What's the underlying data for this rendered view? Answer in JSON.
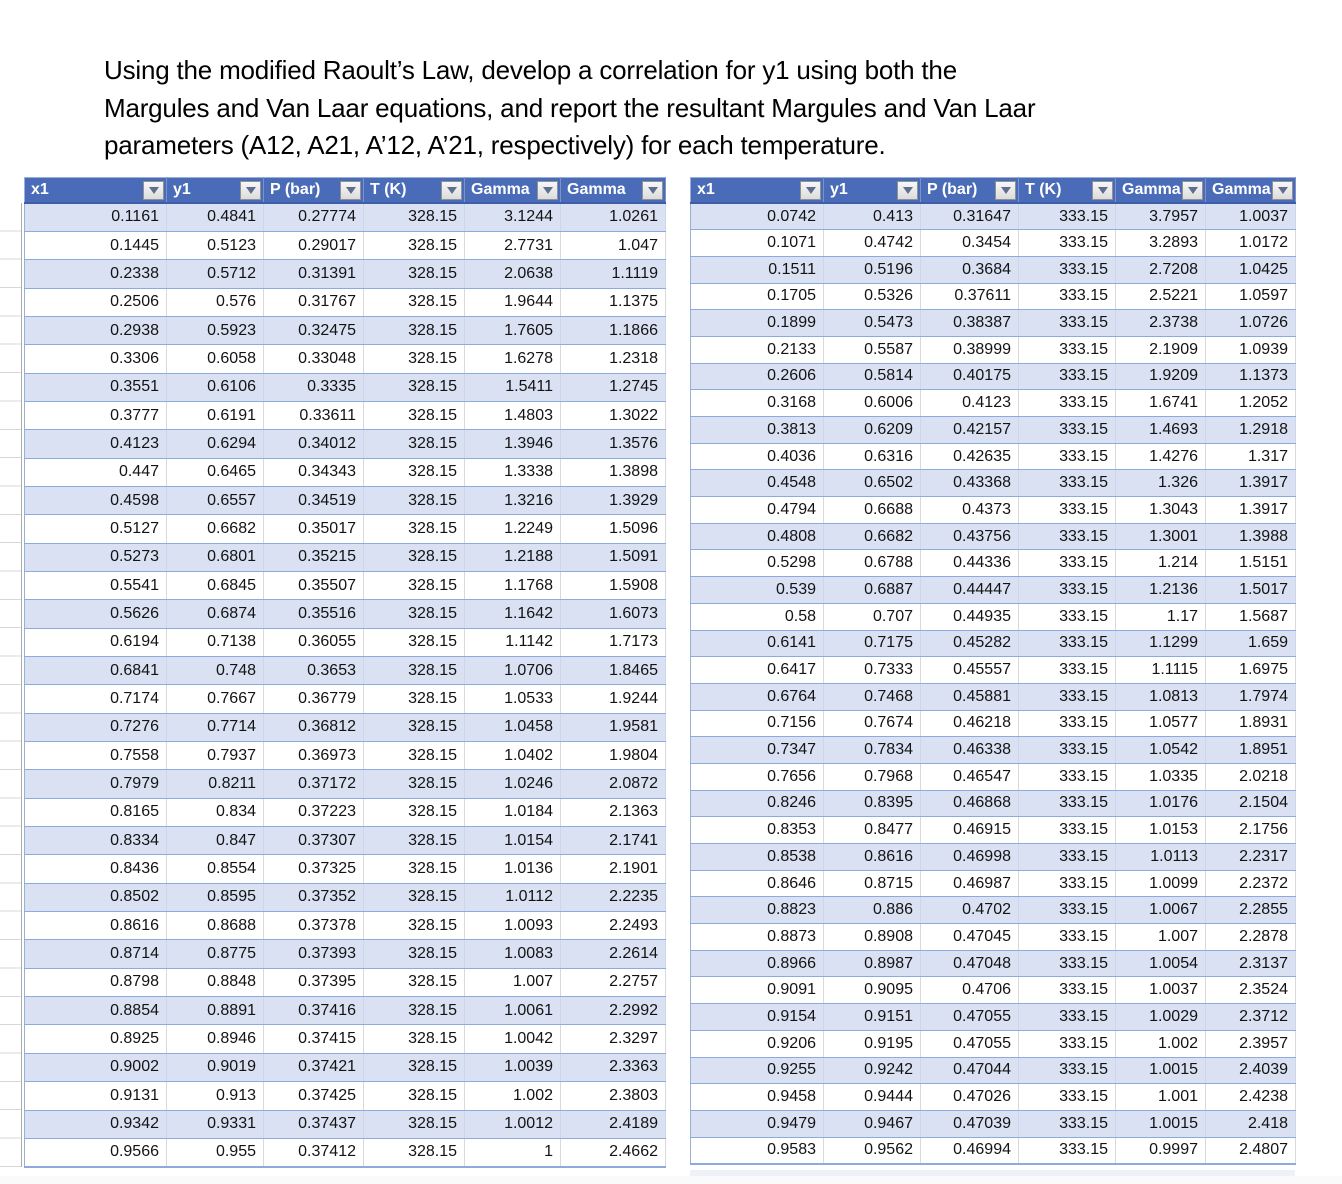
{
  "title": {
    "line1": "Using the modified Raoult’s Law, develop a correlation for y1 using both the",
    "line2": "Margules and Van Laar equations, and report the resultant Margules and Van Laar",
    "line3": "parameters (A12, A21, A’12, A’21, respectively) for each temperature."
  },
  "colors": {
    "header_bg": "#4A6CB8",
    "band": "#D9E1F2",
    "row_border": "#8EA9DB",
    "header_underline": "#3D5EA6"
  },
  "tables": [
    {
      "id": "table-328K",
      "temperature": "328.15",
      "columns": [
        "x1",
        "y1",
        "P (bar)",
        "T (K)",
        "Gamma",
        "Gamma"
      ],
      "rows": [
        [
          "0.1161",
          "0.4841",
          "0.27774",
          "328.15",
          "3.1244",
          "1.0261"
        ],
        [
          "0.1445",
          "0.5123",
          "0.29017",
          "328.15",
          "2.7731",
          "1.047"
        ],
        [
          "0.2338",
          "0.5712",
          "0.31391",
          "328.15",
          "2.0638",
          "1.1119"
        ],
        [
          "0.2506",
          "0.576",
          "0.31767",
          "328.15",
          "1.9644",
          "1.1375"
        ],
        [
          "0.2938",
          "0.5923",
          "0.32475",
          "328.15",
          "1.7605",
          "1.1866"
        ],
        [
          "0.3306",
          "0.6058",
          "0.33048",
          "328.15",
          "1.6278",
          "1.2318"
        ],
        [
          "0.3551",
          "0.6106",
          "0.3335",
          "328.15",
          "1.5411",
          "1.2745"
        ],
        [
          "0.3777",
          "0.6191",
          "0.33611",
          "328.15",
          "1.4803",
          "1.3022"
        ],
        [
          "0.4123",
          "0.6294",
          "0.34012",
          "328.15",
          "1.3946",
          "1.3576"
        ],
        [
          "0.447",
          "0.6465",
          "0.34343",
          "328.15",
          "1.3338",
          "1.3898"
        ],
        [
          "0.4598",
          "0.6557",
          "0.34519",
          "328.15",
          "1.3216",
          "1.3929"
        ],
        [
          "0.5127",
          "0.6682",
          "0.35017",
          "328.15",
          "1.2249",
          "1.5096"
        ],
        [
          "0.5273",
          "0.6801",
          "0.35215",
          "328.15",
          "1.2188",
          "1.5091"
        ],
        [
          "0.5541",
          "0.6845",
          "0.35507",
          "328.15",
          "1.1768",
          "1.5908"
        ],
        [
          "0.5626",
          "0.6874",
          "0.35516",
          "328.15",
          "1.1642",
          "1.6073"
        ],
        [
          "0.6194",
          "0.7138",
          "0.36055",
          "328.15",
          "1.1142",
          "1.7173"
        ],
        [
          "0.6841",
          "0.748",
          "0.3653",
          "328.15",
          "1.0706",
          "1.8465"
        ],
        [
          "0.7174",
          "0.7667",
          "0.36779",
          "328.15",
          "1.0533",
          "1.9244"
        ],
        [
          "0.7276",
          "0.7714",
          "0.36812",
          "328.15",
          "1.0458",
          "1.9581"
        ],
        [
          "0.7558",
          "0.7937",
          "0.36973",
          "328.15",
          "1.0402",
          "1.9804"
        ],
        [
          "0.7979",
          "0.8211",
          "0.37172",
          "328.15",
          "1.0246",
          "2.0872"
        ],
        [
          "0.8165",
          "0.834",
          "0.37223",
          "328.15",
          "1.0184",
          "2.1363"
        ],
        [
          "0.8334",
          "0.847",
          "0.37307",
          "328.15",
          "1.0154",
          "2.1741"
        ],
        [
          "0.8436",
          "0.8554",
          "0.37325",
          "328.15",
          "1.0136",
          "2.1901"
        ],
        [
          "0.8502",
          "0.8595",
          "0.37352",
          "328.15",
          "1.0112",
          "2.2235"
        ],
        [
          "0.8616",
          "0.8688",
          "0.37378",
          "328.15",
          "1.0093",
          "2.2493"
        ],
        [
          "0.8714",
          "0.8775",
          "0.37393",
          "328.15",
          "1.0083",
          "2.2614"
        ],
        [
          "0.8798",
          "0.8848",
          "0.37395",
          "328.15",
          "1.007",
          "2.2757"
        ],
        [
          "0.8854",
          "0.8891",
          "0.37416",
          "328.15",
          "1.0061",
          "2.2992"
        ],
        [
          "0.8925",
          "0.8946",
          "0.37415",
          "328.15",
          "1.0042",
          "2.3297"
        ],
        [
          "0.9002",
          "0.9019",
          "0.37421",
          "328.15",
          "1.0039",
          "2.3363"
        ],
        [
          "0.9131",
          "0.913",
          "0.37425",
          "328.15",
          "1.002",
          "2.3803"
        ],
        [
          "0.9342",
          "0.9331",
          "0.37437",
          "328.15",
          "1.0012",
          "2.4189"
        ],
        [
          "0.9566",
          "0.955",
          "0.37412",
          "328.15",
          "1",
          "2.4662"
        ]
      ]
    },
    {
      "id": "table-333K",
      "temperature": "333.15",
      "columns": [
        "x1",
        "y1",
        "P (bar)",
        "T (K)",
        "Gamma",
        "Gamma"
      ],
      "rows": [
        [
          "0.0742",
          "0.413",
          "0.31647",
          "333.15",
          "3.7957",
          "1.0037"
        ],
        [
          "0.1071",
          "0.4742",
          "0.3454",
          "333.15",
          "3.2893",
          "1.0172"
        ],
        [
          "0.1511",
          "0.5196",
          "0.3684",
          "333.15",
          "2.7208",
          "1.0425"
        ],
        [
          "0.1705",
          "0.5326",
          "0.37611",
          "333.15",
          "2.5221",
          "1.0597"
        ],
        [
          "0.1899",
          "0.5473",
          "0.38387",
          "333.15",
          "2.3738",
          "1.0726"
        ],
        [
          "0.2133",
          "0.5587",
          "0.38999",
          "333.15",
          "2.1909",
          "1.0939"
        ],
        [
          "0.2606",
          "0.5814",
          "0.40175",
          "333.15",
          "1.9209",
          "1.1373"
        ],
        [
          "0.3168",
          "0.6006",
          "0.4123",
          "333.15",
          "1.6741",
          "1.2052"
        ],
        [
          "0.3813",
          "0.6209",
          "0.42157",
          "333.15",
          "1.4693",
          "1.2918"
        ],
        [
          "0.4036",
          "0.6316",
          "0.42635",
          "333.15",
          "1.4276",
          "1.317"
        ],
        [
          "0.4548",
          "0.6502",
          "0.43368",
          "333.15",
          "1.326",
          "1.3917"
        ],
        [
          "0.4794",
          "0.6688",
          "0.4373",
          "333.15",
          "1.3043",
          "1.3917"
        ],
        [
          "0.4808",
          "0.6682",
          "0.43756",
          "333.15",
          "1.3001",
          "1.3988"
        ],
        [
          "0.5298",
          "0.6788",
          "0.44336",
          "333.15",
          "1.214",
          "1.5151"
        ],
        [
          "0.539",
          "0.6887",
          "0.44447",
          "333.15",
          "1.2136",
          "1.5017"
        ],
        [
          "0.58",
          "0.707",
          "0.44935",
          "333.15",
          "1.17",
          "1.5687"
        ],
        [
          "0.6141",
          "0.7175",
          "0.45282",
          "333.15",
          "1.1299",
          "1.659"
        ],
        [
          "0.6417",
          "0.7333",
          "0.45557",
          "333.15",
          "1.1115",
          "1.6975"
        ],
        [
          "0.6764",
          "0.7468",
          "0.45881",
          "333.15",
          "1.0813",
          "1.7974"
        ],
        [
          "0.7156",
          "0.7674",
          "0.46218",
          "333.15",
          "1.0577",
          "1.8931"
        ],
        [
          "0.7347",
          "0.7834",
          "0.46338",
          "333.15",
          "1.0542",
          "1.8951"
        ],
        [
          "0.7656",
          "0.7968",
          "0.46547",
          "333.15",
          "1.0335",
          "2.0218"
        ],
        [
          "0.8246",
          "0.8395",
          "0.46868",
          "333.15",
          "1.0176",
          "2.1504"
        ],
        [
          "0.8353",
          "0.8477",
          "0.46915",
          "333.15",
          "1.0153",
          "2.1756"
        ],
        [
          "0.8538",
          "0.8616",
          "0.46998",
          "333.15",
          "1.0113",
          "2.2317"
        ],
        [
          "0.8646",
          "0.8715",
          "0.46987",
          "333.15",
          "1.0099",
          "2.2372"
        ],
        [
          "0.8823",
          "0.886",
          "0.4702",
          "333.15",
          "1.0067",
          "2.2855"
        ],
        [
          "0.8873",
          "0.8908",
          "0.47045",
          "333.15",
          "1.007",
          "2.2878"
        ],
        [
          "0.8966",
          "0.8987",
          "0.47048",
          "333.15",
          "1.0054",
          "2.3137"
        ],
        [
          "0.9091",
          "0.9095",
          "0.4706",
          "333.15",
          "1.0037",
          "2.3524"
        ],
        [
          "0.9154",
          "0.9151",
          "0.47055",
          "333.15",
          "1.0029",
          "2.3712"
        ],
        [
          "0.9206",
          "0.9195",
          "0.47055",
          "333.15",
          "1.002",
          "2.3957"
        ],
        [
          "0.9255",
          "0.9242",
          "0.47044",
          "333.15",
          "1.0015",
          "2.4039"
        ],
        [
          "0.9458",
          "0.9444",
          "0.47026",
          "333.15",
          "1.001",
          "2.4238"
        ],
        [
          "0.9479",
          "0.9467",
          "0.47039",
          "333.15",
          "1.0015",
          "2.418"
        ],
        [
          "0.9583",
          "0.9562",
          "0.46994",
          "333.15",
          "0.9997",
          "2.4807"
        ]
      ]
    }
  ]
}
